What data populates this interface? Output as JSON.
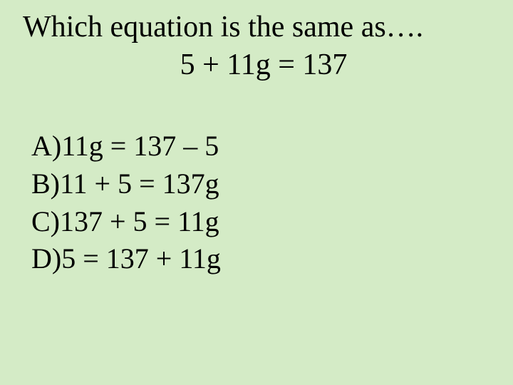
{
  "background_color": "#d4ebc6",
  "text_color": "#000000",
  "font_family": "Comic Sans MS",
  "heading": {
    "line1": "Which equation is the same as….",
    "line2": "5 + 11g = 137",
    "fontsize": 42
  },
  "options": {
    "fontsize": 40,
    "items": [
      {
        "label": "A)",
        "text": "11g = 137 – 5"
      },
      {
        "label": "B)",
        "text": "11 + 5 = 137g"
      },
      {
        "label": "C)",
        "text": "137 + 5 = 11g"
      },
      {
        "label": "D)",
        "text": "5 = 137 + 11g"
      }
    ]
  }
}
